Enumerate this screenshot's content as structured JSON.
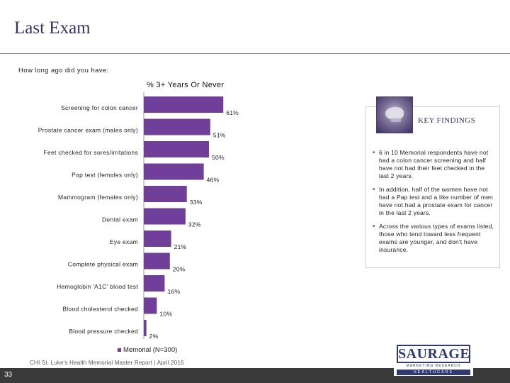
{
  "page": {
    "title": "Last Exam",
    "question": "How long ago did you have:",
    "legend_label": "Memorial (N=300)",
    "source": "CHI St. Luke's Health Memorial Master Report | April 2016",
    "page_number": "33"
  },
  "chart_data": {
    "type": "bar",
    "orientation": "horizontal",
    "title": "% 3+ Years Or Never",
    "categories": [
      "Screening for colon cancer",
      "Prostate cancer exam (males only)",
      "Feet checked for sores/irritations",
      "Pap test (females only)",
      "Mammogram (females only)",
      "Dental exam",
      "Eye exam",
      "Complete physical exam",
      "Hemoglobin 'A1C' blood test",
      "Blood cholesterol checked",
      "Blood pressure checked"
    ],
    "series": [
      {
        "name": "Memorial (N=300)",
        "values": [
          61,
          51,
          50,
          46,
          33,
          32,
          21,
          20,
          16,
          10,
          2
        ],
        "value_labels": [
          "61%",
          "51%",
          "50%",
          "46%",
          "33%",
          "32%",
          "21%",
          "20%",
          "16%",
          "10%",
          "2%"
        ],
        "color": "#6f3f99"
      }
    ],
    "xlim": [
      0,
      100
    ],
    "grid": false,
    "legend_position": "bottom-left"
  },
  "findings": {
    "heading": "KEY FINDINGS",
    "items": [
      "6 in 10 Memorial respondents have not had a colon cancer screening and half have not had their feet checked in the last 2 years.",
      "In addition, half of the women have not had a Pap test and a like number of men have not had a prostate exam for cancer in the last 2 years.",
      "Across the various types of exams listed, those who tend toward less frequent exams are younger, and don't have insurance."
    ]
  },
  "logo": {
    "main": "SAURAGE",
    "sub": "MARKETING RESEARCH",
    "strip": "HEALTHCARE"
  },
  "icons": {
    "findings_image": "hand-holding-key-photo"
  }
}
